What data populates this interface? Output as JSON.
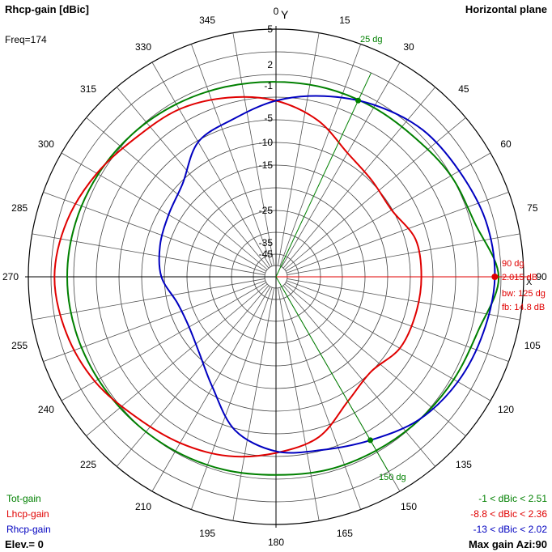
{
  "header": {
    "title": "Rhcp-gain [dBic]",
    "plane": "Horizontal plane",
    "freq": "Freq=174",
    "y_axis_marker": "Y",
    "x_axis_marker": "X"
  },
  "footer": {
    "elevation": "Elev.= 0",
    "max_gain": "Max gain Azi:90"
  },
  "legend": [
    {
      "name": "Tot-gain",
      "color": "#008000",
      "range": "-1 < dBic < 2.51"
    },
    {
      "name": "Lhcp-gain",
      "color": "#e00000",
      "range": "-8.8 < dBic < 2.36"
    },
    {
      "name": "Rhcp-gain",
      "color": "#0000c0",
      "range": "-13 < dBic < 2.02"
    }
  ],
  "markers": {
    "primary": {
      "angle": 90,
      "angle_label": "90 dg",
      "gain_label": "2.015 dB",
      "bw_label": "bw: 125 dg",
      "fb_label": "fb: 14.8 dB",
      "color": "#e00000"
    },
    "half_power_1": {
      "angle": 25,
      "label": "25 dg",
      "color": "#008000"
    },
    "half_power_2": {
      "angle": 150,
      "label": "150 dg",
      "color": "#008000"
    }
  },
  "chart_data": {
    "type": "polar",
    "title": "Rhcp-gain [dBic]",
    "angle_unit": "degrees (azimuth, clockwise from top)",
    "angle_ticks": [
      0,
      15,
      30,
      45,
      60,
      75,
      90,
      105,
      120,
      135,
      150,
      165,
      180,
      195,
      210,
      225,
      240,
      255,
      270,
      285,
      300,
      315,
      330,
      345
    ],
    "radial_tick_labels": [
      {
        "value": 5,
        "label": "5"
      },
      {
        "value": 2,
        "label": "2"
      },
      {
        "value": -1,
        "label": "-1"
      },
      {
        "value": -5,
        "label": "-5"
      },
      {
        "value": -10,
        "label": "-10"
      },
      {
        "value": -15,
        "label": "-15"
      },
      {
        "value": -25,
        "label": "-25"
      },
      {
        "value": -35,
        "label": "-35"
      },
      {
        "value": -45,
        "label": "-45"
      }
    ],
    "series": [
      {
        "name": "Tot-gain",
        "color": "#008000",
        "angles": [
          0,
          15,
          30,
          45,
          60,
          75,
          90,
          105,
          120,
          135,
          150,
          165,
          180,
          195,
          210,
          225,
          240,
          255,
          270,
          285,
          300,
          315,
          330,
          345
        ],
        "values": [
          -1,
          -0.98,
          -0.95,
          -0.8,
          -0.1,
          0.4,
          2.51,
          0.8,
          0.3,
          -0.05,
          -0.3,
          -0.4,
          -0.6,
          -0.4,
          -0.2,
          0.0,
          0.3,
          0.6,
          0.75,
          0.6,
          0.3,
          -0.05,
          -0.45,
          -0.8
        ]
      },
      {
        "name": "Lhcp-gain",
        "color": "#e00000",
        "angles": [
          0,
          15,
          30,
          45,
          60,
          75,
          90,
          105,
          120,
          135,
          150,
          165,
          180,
          195,
          210,
          225,
          240,
          255,
          270,
          285,
          300,
          315,
          330,
          345
        ],
        "values": [
          -3.4,
          -5.2,
          -7.6,
          -8.5,
          -8.8,
          -7.4,
          -7.3,
          -7.4,
          -7.6,
          -8.7,
          -7.5,
          -4.7,
          -3.4,
          -2.2,
          -1.4,
          -0.6,
          0.8,
          1.8,
          2.36,
          1.7,
          0.5,
          -0.7,
          -1.2,
          -2.2
        ]
      },
      {
        "name": "Rhcp-gain",
        "color": "#0000c0",
        "angles": [
          0,
          15,
          30,
          45,
          60,
          75,
          90,
          105,
          120,
          135,
          150,
          165,
          180,
          195,
          210,
          225,
          240,
          255,
          270,
          285,
          300,
          315,
          330,
          345
        ],
        "values": [
          -3.4,
          -2.0,
          -0.6,
          0.6,
          1.1,
          1.8,
          2.02,
          1.5,
          0.9,
          -0.1,
          -1.8,
          -3.0,
          -3.6,
          -5.6,
          -9.6,
          -12.0,
          -13.0,
          -12.8,
          -11.2,
          -10.5,
          -10.0,
          -9.0,
          -6.0,
          -5.0
        ]
      }
    ]
  }
}
